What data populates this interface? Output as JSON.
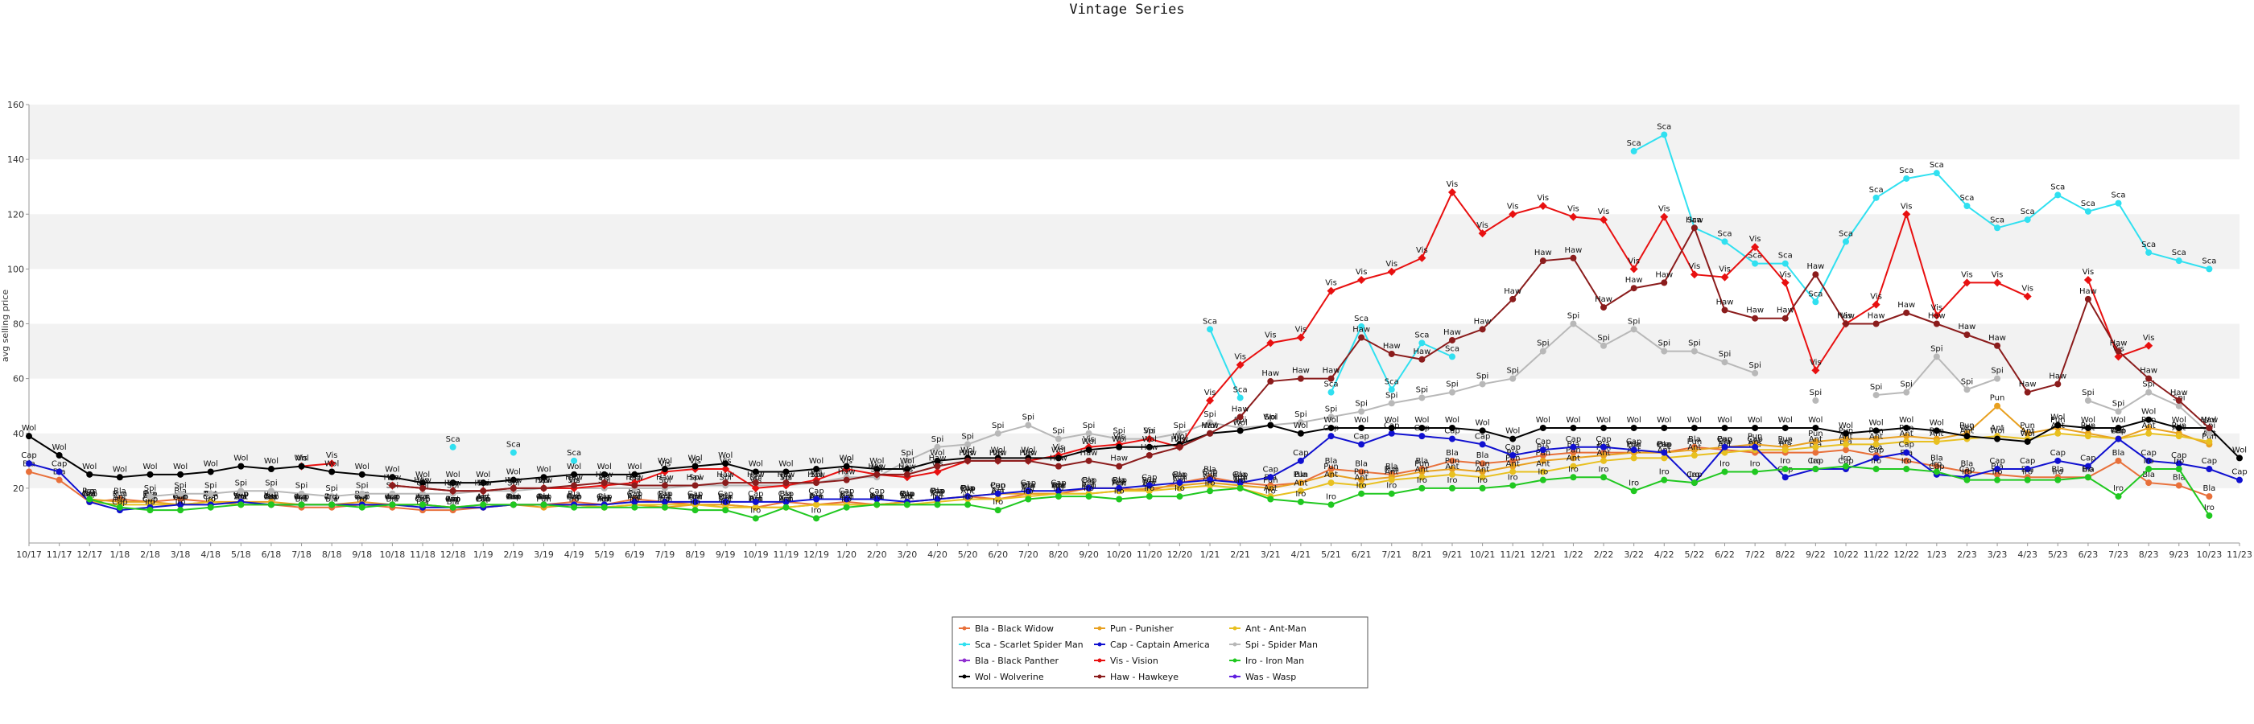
{
  "chart_data": {
    "type": "line",
    "title": "Vintage Series",
    "xlabel": "",
    "ylabel": "avg selling price",
    "ylim": [
      0,
      160
    ],
    "yticks": [
      20,
      40,
      60,
      80,
      100,
      120,
      140,
      160
    ],
    "grid": "alternating horizontal bands",
    "legend_position": "bottom-center",
    "x": [
      "10/17",
      "11/17",
      "12/17",
      "1/18",
      "2/18",
      "3/18",
      "4/18",
      "5/18",
      "6/18",
      "7/18",
      "8/18",
      "9/18",
      "10/18",
      "11/18",
      "12/18",
      "1/19",
      "2/19",
      "3/19",
      "4/19",
      "5/19",
      "6/19",
      "7/19",
      "8/19",
      "9/19",
      "10/19",
      "11/19",
      "12/19",
      "1/20",
      "2/20",
      "3/20",
      "4/20",
      "5/20",
      "6/20",
      "7/20",
      "8/20",
      "9/20",
      "10/20",
      "11/20",
      "12/20",
      "1/21",
      "2/21",
      "3/21",
      "4/21",
      "5/21",
      "6/21",
      "7/21",
      "8/21",
      "9/21",
      "10/21",
      "11/21",
      "12/21",
      "1/22",
      "2/22",
      "3/22",
      "4/22",
      "5/22",
      "6/22",
      "7/22",
      "8/22",
      "9/22",
      "10/22",
      "11/22",
      "12/22",
      "1/23",
      "2/23",
      "3/23",
      "4/23",
      "5/23",
      "6/23",
      "7/23",
      "8/23",
      "9/23",
      "10/23",
      "11/23"
    ],
    "series": [
      {
        "name": "Bla - Black Widow",
        "short": "Bla",
        "color": "#e8703a",
        "marker": "circle",
        "values": [
          26,
          23,
          15,
          16,
          15,
          16,
          15,
          14,
          14,
          13,
          13,
          14,
          13,
          12,
          12,
          13,
          14,
          14,
          15,
          14,
          16,
          15,
          14,
          14,
          13,
          15,
          14,
          15,
          14,
          15,
          16,
          17,
          16,
          18,
          18,
          20,
          20,
          19,
          22,
          24,
          22,
          21,
          22,
          27,
          26,
          25,
          27,
          30,
          29,
          30,
          32,
          33,
          33,
          33,
          33,
          35,
          34,
          33,
          33,
          33,
          34,
          32,
          30,
          28,
          26,
          25,
          24,
          24,
          24,
          30,
          22,
          21,
          17,
          null
        ]
      },
      {
        "name": "Pun - Punisher",
        "short": "Pun",
        "color": "#e8a020",
        "marker": "circle",
        "values": [
          null,
          null,
          16,
          15,
          15,
          14,
          15,
          15,
          15,
          14,
          14,
          15,
          14,
          14,
          13,
          13,
          14,
          13,
          14,
          13,
          14,
          13,
          14,
          14,
          13,
          13,
          14,
          14,
          14,
          15,
          16,
          17,
          18,
          18,
          18,
          18,
          19,
          20,
          21,
          22,
          21,
          20,
          22,
          25,
          23,
          24,
          26,
          27,
          26,
          28,
          30,
          31,
          32,
          33,
          33,
          34,
          35,
          36,
          35,
          37,
          38,
          38,
          39,
          38,
          40,
          50,
          40,
          42,
          40,
          38,
          42,
          40,
          36,
          null
        ]
      },
      {
        "name": "Ant - Ant-Man",
        "short": "Ant",
        "color": "#e8c020",
        "marker": "circle",
        "values": [
          null,
          null,
          15,
          14,
          14,
          14,
          15,
          14,
          14,
          14,
          14,
          14,
          14,
          14,
          13,
          14,
          14,
          14,
          14,
          13,
          14,
          14,
          14,
          13,
          13,
          13,
          14,
          14,
          14,
          14,
          15,
          16,
          16,
          17,
          18,
          18,
          19,
          19,
          20,
          21,
          20,
          17,
          19,
          22,
          21,
          23,
          24,
          25,
          24,
          26,
          26,
          28,
          30,
          31,
          31,
          32,
          33,
          34,
          34,
          35,
          36,
          36,
          37,
          37,
          38,
          39,
          38,
          40,
          39,
          38,
          40,
          39,
          37,
          null
        ]
      },
      {
        "name": "Sca - Scarlet Spider Man",
        "short": "Sca",
        "color": "#30e0f0",
        "marker": "circle",
        "values": [
          null,
          null,
          null,
          null,
          null,
          null,
          null,
          null,
          null,
          null,
          null,
          null,
          null,
          null,
          35,
          null,
          33,
          null,
          30,
          null,
          null,
          null,
          null,
          null,
          null,
          null,
          null,
          null,
          null,
          null,
          null,
          null,
          null,
          null,
          null,
          null,
          null,
          null,
          null,
          78,
          53,
          null,
          null,
          55,
          79,
          56,
          73,
          68,
          null,
          null,
          null,
          null,
          null,
          143,
          149,
          115,
          110,
          102,
          102,
          88,
          110,
          126,
          133,
          135,
          123,
          115,
          118,
          127,
          121,
          124,
          106,
          103,
          100,
          null
        ]
      },
      {
        "name": "Cap - Captain America",
        "short": "Cap",
        "color": "#1010d0",
        "marker": "circle",
        "values": [
          29,
          26,
          15,
          12,
          13,
          14,
          14,
          15,
          14,
          14,
          14,
          14,
          14,
          13,
          13,
          13,
          14,
          14,
          14,
          14,
          15,
          15,
          15,
          15,
          15,
          15,
          16,
          16,
          16,
          15,
          16,
          17,
          18,
          19,
          19,
          20,
          20,
          21,
          22,
          23,
          22,
          24,
          30,
          39,
          36,
          40,
          39,
          38,
          36,
          32,
          34,
          35,
          35,
          34,
          33,
          22,
          35,
          35,
          24,
          27,
          27,
          31,
          33,
          25,
          24,
          27,
          27,
          30,
          28,
          38,
          30,
          29,
          27,
          23
        ]
      },
      {
        "name": "Spi - Spider Man",
        "short": "Spi",
        "color": "#b8b8b8",
        "marker": "circle",
        "values": [
          null,
          null,
          null,
          null,
          17,
          18,
          18,
          19,
          19,
          18,
          17,
          18,
          18,
          18,
          18,
          19,
          19,
          20,
          20,
          20,
          20,
          20,
          21,
          21,
          21,
          21,
          22,
          24,
          24,
          30,
          35,
          36,
          40,
          43,
          38,
          40,
          38,
          38,
          40,
          44,
          42,
          43,
          44,
          46,
          48,
          51,
          53,
          55,
          58,
          60,
          70,
          80,
          72,
          78,
          70,
          70,
          66,
          62,
          null,
          52,
          null,
          54,
          55,
          68,
          56,
          60,
          null,
          null,
          52,
          48,
          55,
          50,
          40,
          null
        ]
      },
      {
        "name": "Bla - Black Panther",
        "short": "Bla",
        "color": "#9030d0",
        "marker": "circle",
        "values": [
          null,
          null,
          null,
          null,
          null,
          null,
          null,
          null,
          null,
          null,
          null,
          null,
          null,
          null,
          null,
          null,
          null,
          null,
          null,
          null,
          null,
          null,
          null,
          null,
          null,
          null,
          null,
          null,
          null,
          null,
          null,
          null,
          null,
          null,
          null,
          null,
          null,
          null,
          null,
          null,
          null,
          null,
          null,
          null,
          null,
          null,
          null,
          null,
          null,
          null,
          null,
          null,
          null,
          null,
          null,
          null,
          null,
          null,
          null,
          null,
          null,
          null,
          null,
          null,
          null,
          null,
          null,
          null,
          null,
          null,
          null,
          null,
          null,
          null
        ]
      },
      {
        "name": "Vis - Vision",
        "short": "Vis",
        "color": "#e81010",
        "marker": "diamond",
        "values": [
          null,
          null,
          null,
          null,
          null,
          null,
          null,
          null,
          null,
          28,
          29,
          null,
          21,
          20,
          19,
          19,
          20,
          20,
          20,
          21,
          22,
          26,
          27,
          27,
          20,
          21,
          23,
          27,
          25,
          24,
          26,
          30,
          30,
          30,
          32,
          35,
          36,
          38,
          35,
          52,
          65,
          73,
          75,
          92,
          96,
          99,
          104,
          128,
          113,
          120,
          123,
          119,
          118,
          100,
          119,
          98,
          97,
          108,
          95,
          63,
          80,
          87,
          120,
          83,
          95,
          95,
          90,
          null,
          96,
          68,
          72,
          null,
          null,
          null
        ]
      },
      {
        "name": "Iro - Iron Man",
        "short": "Iro",
        "color": "#20c820",
        "marker": "circle",
        "values": [
          null,
          null,
          16,
          13,
          12,
          12,
          13,
          14,
          14,
          14,
          14,
          13,
          14,
          14,
          13,
          14,
          14,
          14,
          13,
          13,
          13,
          13,
          12,
          12,
          9,
          13,
          9,
          13,
          14,
          14,
          14,
          14,
          12,
          16,
          17,
          17,
          16,
          17,
          17,
          19,
          20,
          16,
          15,
          14,
          18,
          18,
          20,
          20,
          20,
          21,
          23,
          24,
          24,
          19,
          23,
          22,
          26,
          26,
          27,
          27,
          28,
          27,
          27,
          26,
          23,
          23,
          23,
          23,
          24,
          17,
          27,
          27,
          10,
          null
        ]
      },
      {
        "name": "Wol - Wolverine",
        "short": "Wol",
        "color": "#000000",
        "marker": "circle",
        "values": [
          39,
          32,
          25,
          24,
          25,
          25,
          26,
          28,
          27,
          28,
          26,
          25,
          24,
          22,
          22,
          22,
          23,
          24,
          25,
          25,
          25,
          27,
          28,
          29,
          26,
          26,
          27,
          28,
          27,
          27,
          30,
          31,
          31,
          31,
          31,
          34,
          35,
          35,
          36,
          40,
          41,
          43,
          40,
          42,
          42,
          42,
          42,
          42,
          41,
          38,
          42,
          42,
          42,
          42,
          42,
          42,
          42,
          42,
          42,
          42,
          40,
          41,
          42,
          41,
          39,
          38,
          37,
          43,
          42,
          42,
          45,
          42,
          42,
          31
        ]
      },
      {
        "name": "Haw - Hawkeye",
        "short": "Haw",
        "color": "#8b1c1c",
        "marker": "circle",
        "values": [
          null,
          null,
          null,
          null,
          null,
          null,
          null,
          null,
          null,
          null,
          null,
          null,
          21,
          20,
          19,
          19,
          20,
          20,
          21,
          22,
          21,
          21,
          21,
          22,
          22,
          22,
          22,
          23,
          25,
          25,
          28,
          30,
          30,
          30,
          28,
          30,
          28,
          32,
          35,
          40,
          46,
          59,
          60,
          60,
          75,
          69,
          67,
          74,
          78,
          89,
          103,
          104,
          86,
          93,
          95,
          115,
          85,
          82,
          82,
          98,
          80,
          80,
          84,
          80,
          76,
          72,
          55,
          58,
          89,
          70,
          60,
          52,
          42,
          null
        ]
      },
      {
        "name": "Was - Wasp",
        "short": "Was",
        "color": "#6020e0",
        "marker": "circle",
        "values": [
          null,
          null,
          null,
          null,
          null,
          null,
          null,
          null,
          null,
          null,
          null,
          null,
          null,
          null,
          null,
          null,
          null,
          null,
          null,
          null,
          null,
          null,
          null,
          null,
          null,
          null,
          null,
          null,
          null,
          null,
          null,
          null,
          null,
          null,
          null,
          null,
          null,
          null,
          null,
          null,
          null,
          null,
          null,
          null,
          null,
          null,
          null,
          null,
          null,
          null,
          null,
          null,
          null,
          null,
          null,
          null,
          null,
          null,
          null,
          null,
          null,
          null,
          null,
          null,
          null,
          null,
          null,
          null,
          null,
          null,
          null,
          null,
          null,
          null
        ]
      }
    ]
  }
}
